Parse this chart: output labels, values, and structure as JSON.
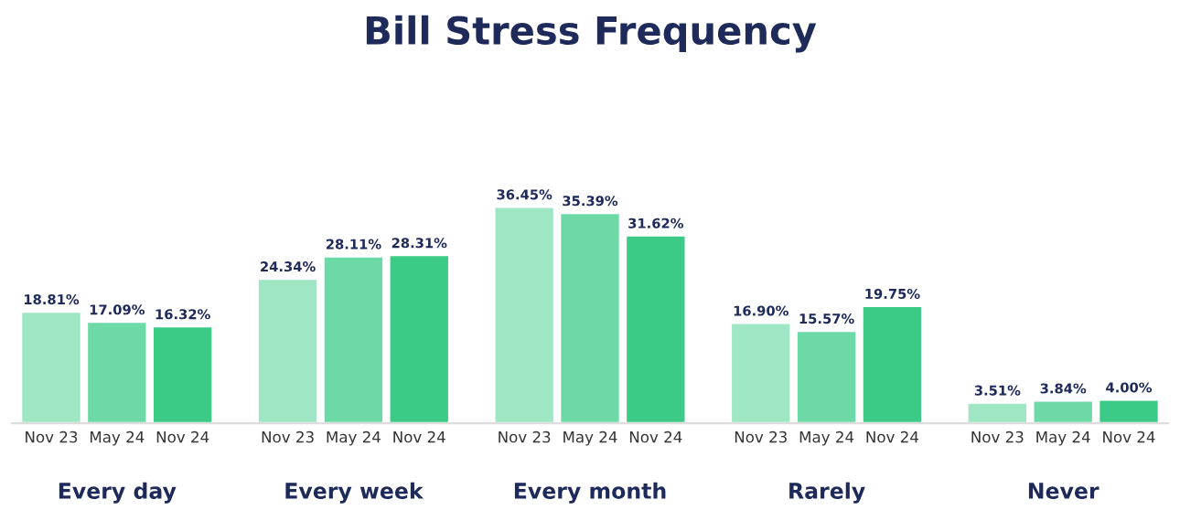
{
  "chart_data": {
    "type": "bar",
    "title": "Bill Stress Frequency",
    "categories": [
      "Every day",
      "Every week",
      "Every month",
      "Rarely",
      "Never"
    ],
    "series": [
      {
        "name": "Nov 23",
        "color": "#9fe6c5",
        "values": [
          18.81,
          24.34,
          36.45,
          16.9,
          3.51
        ],
        "value_labels": [
          "18.81%",
          "24.34%",
          "36.45%",
          "16.90%",
          "3.51%"
        ]
      },
      {
        "name": "May 24",
        "color": "#6dd9a7",
        "values": [
          17.09,
          28.11,
          35.39,
          15.57,
          3.84
        ],
        "value_labels": [
          "17.09%",
          "28.11%",
          "35.39%",
          "15.57%",
          "3.84%"
        ]
      },
      {
        "name": "Nov 24",
        "color": "#3ccb86",
        "values": [
          16.32,
          28.31,
          31.62,
          19.75,
          4.0
        ],
        "value_labels": [
          "16.32%",
          "28.31%",
          "31.62%",
          "19.75%",
          "4.00%"
        ]
      }
    ],
    "grid": false,
    "legend": false
  }
}
